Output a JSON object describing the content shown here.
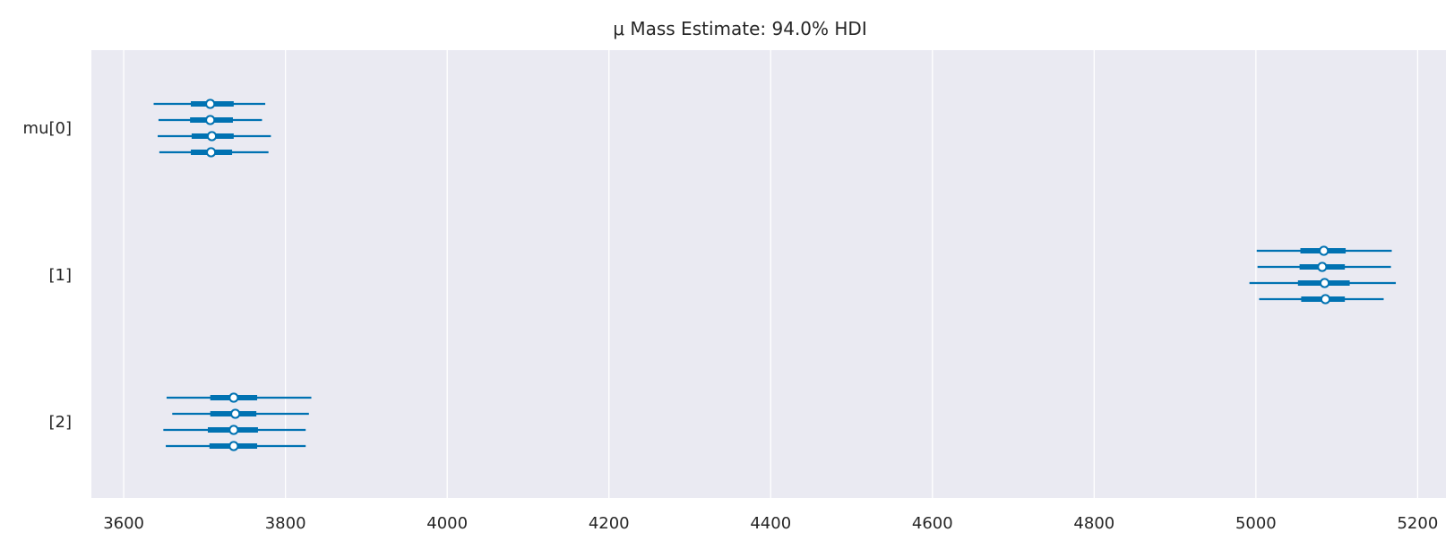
{
  "chart_data": {
    "type": "forest",
    "title": "μ Mass Estimate: 94.0% HDI",
    "hdi_prob": 0.94,
    "xlabel": "",
    "ylabel": "",
    "xlim": [
      3560,
      5235
    ],
    "x_ticks": [
      3600,
      3800,
      4000,
      4200,
      4400,
      4600,
      4800,
      5000,
      5200
    ],
    "grid": true,
    "colors": {
      "background": "#EAEAF2",
      "grid": "#FFFFFF",
      "series": "#0072B2",
      "marker_fill": "#FFFFFF"
    },
    "parameters": [
      {
        "label": "mu[0]",
        "chains": [
          {
            "hdi_low": 3637,
            "iqr_low": 3683,
            "median": 3707,
            "iqr_high": 3736,
            "hdi_high": 3775
          },
          {
            "hdi_low": 3643,
            "iqr_low": 3682,
            "median": 3707,
            "iqr_high": 3735,
            "hdi_high": 3771
          },
          {
            "hdi_low": 3642,
            "iqr_low": 3684,
            "median": 3709,
            "iqr_high": 3736,
            "hdi_high": 3782
          },
          {
            "hdi_low": 3644,
            "iqr_low": 3683,
            "median": 3708,
            "iqr_high": 3734,
            "hdi_high": 3779
          }
        ]
      },
      {
        "label": "[1]",
        "chains": [
          {
            "hdi_low": 5001,
            "iqr_low": 5055,
            "median": 5084,
            "iqr_high": 5111,
            "hdi_high": 5168
          },
          {
            "hdi_low": 5002,
            "iqr_low": 5054,
            "median": 5082,
            "iqr_high": 5110,
            "hdi_high": 5167
          },
          {
            "hdi_low": 4992,
            "iqr_low": 5052,
            "median": 5085,
            "iqr_high": 5116,
            "hdi_high": 5173
          },
          {
            "hdi_low": 5004,
            "iqr_low": 5056,
            "median": 5086,
            "iqr_high": 5110,
            "hdi_high": 5158
          }
        ]
      },
      {
        "label": "[2]",
        "chains": [
          {
            "hdi_low": 3653,
            "iqr_low": 3707,
            "median": 3736,
            "iqr_high": 3765,
            "hdi_high": 3832
          },
          {
            "hdi_low": 3660,
            "iqr_low": 3707,
            "median": 3738,
            "iqr_high": 3764,
            "hdi_high": 3829
          },
          {
            "hdi_low": 3649,
            "iqr_low": 3704,
            "median": 3736,
            "iqr_high": 3766,
            "hdi_high": 3825
          },
          {
            "hdi_low": 3652,
            "iqr_low": 3706,
            "median": 3736,
            "iqr_high": 3765,
            "hdi_high": 3825
          }
        ]
      }
    ]
  }
}
